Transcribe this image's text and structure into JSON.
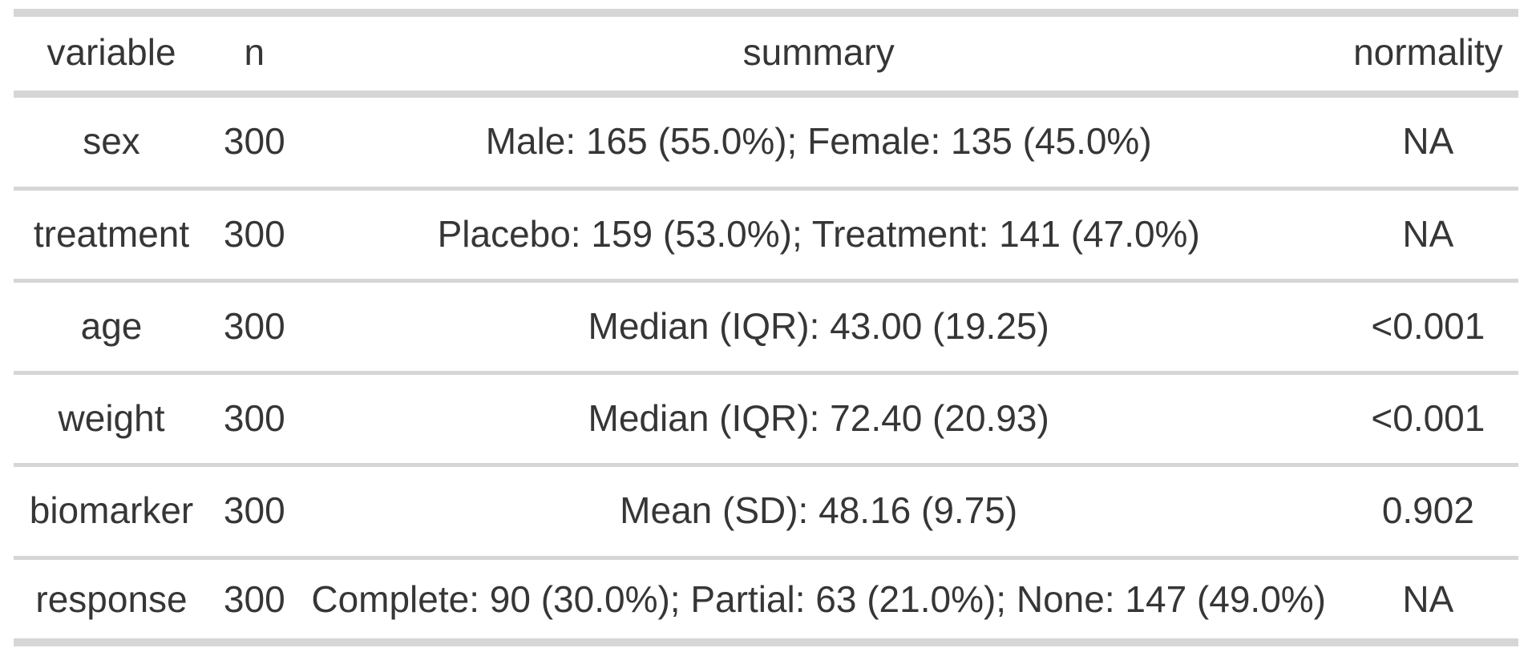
{
  "colors": {
    "border": "#d6d6d6",
    "text": "#363636",
    "background": "#ffffff"
  },
  "table": {
    "columns": [
      {
        "key": "variable",
        "label": "variable"
      },
      {
        "key": "n",
        "label": "n"
      },
      {
        "key": "summary",
        "label": "summary"
      },
      {
        "key": "normality",
        "label": "normality"
      }
    ],
    "rows": [
      {
        "variable": "sex",
        "n": "300",
        "summary": "Male: 165 (55.0%); Female: 135 (45.0%)",
        "normality": "NA"
      },
      {
        "variable": "treatment",
        "n": "300",
        "summary": "Placebo: 159 (53.0%); Treatment: 141 (47.0%)",
        "normality": "NA"
      },
      {
        "variable": "age",
        "n": "300",
        "summary": "Median (IQR): 43.00 (19.25)",
        "normality": "<0.001"
      },
      {
        "variable": "weight",
        "n": "300",
        "summary": "Median (IQR): 72.40 (20.93)",
        "normality": "<0.001"
      },
      {
        "variable": "biomarker",
        "n": "300",
        "summary": "Mean (SD): 48.16 (9.75)",
        "normality": "0.902"
      },
      {
        "variable": "response",
        "n": "300",
        "summary": "Complete: 90 (30.0%); Partial: 63 (21.0%); None: 147 (49.0%)",
        "normality": "NA"
      }
    ]
  },
  "chart_data": {
    "type": "table",
    "title": "",
    "columns": [
      "variable",
      "n",
      "summary",
      "normality"
    ],
    "rows": [
      [
        "sex",
        300,
        "Male: 165 (55.0%); Female: 135 (45.0%)",
        "NA"
      ],
      [
        "treatment",
        300,
        "Placebo: 159 (53.0%); Treatment: 141 (47.0%)",
        "NA"
      ],
      [
        "age",
        300,
        "Median (IQR): 43.00 (19.25)",
        "<0.001"
      ],
      [
        "weight",
        300,
        "Median (IQR): 72.40 (20.93)",
        "<0.001"
      ],
      [
        "biomarker",
        300,
        "Mean (SD): 48.16 (9.75)",
        "0.902"
      ],
      [
        "response",
        300,
        "Complete: 90 (30.0%); Partial: 63 (21.0%); None: 147 (49.0%)",
        "NA"
      ]
    ]
  }
}
